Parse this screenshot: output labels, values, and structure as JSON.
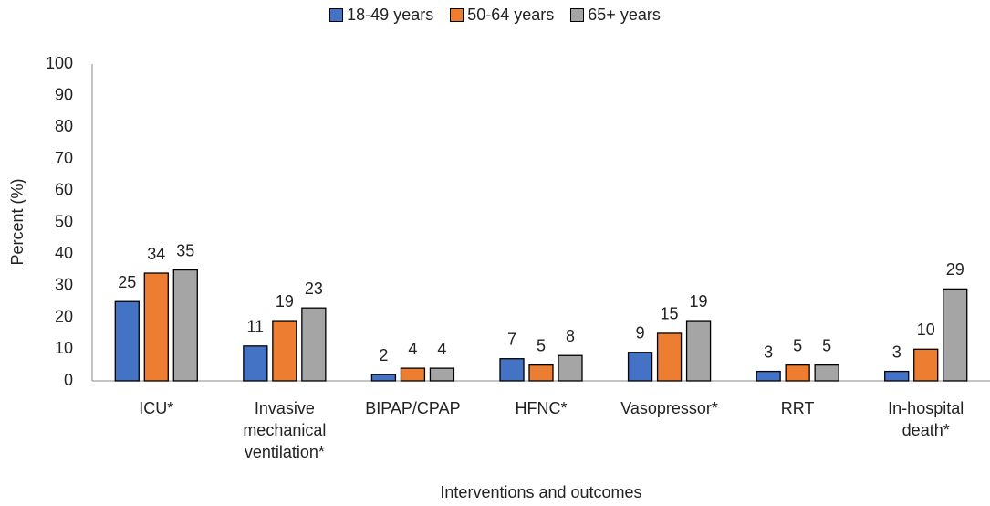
{
  "chart_data": {
    "type": "bar",
    "categories": [
      "ICU*",
      "Invasive mechanical ventilation*",
      "BIPAP/CPAP",
      "HFNC*",
      "Vasopressor*",
      "RRT",
      "In-hospital death*"
    ],
    "series": [
      {
        "name": "18-49 years",
        "color": "#4472c4",
        "values": [
          25,
          11,
          2,
          7,
          9,
          3,
          3
        ]
      },
      {
        "name": "50-64 years",
        "color": "#ed7d31",
        "values": [
          34,
          19,
          4,
          5,
          15,
          5,
          10
        ]
      },
      {
        "name": "65+ years",
        "color": "#a5a5a5",
        "values": [
          35,
          23,
          4,
          8,
          19,
          5,
          29
        ]
      }
    ],
    "ylabel": "Percent (%)",
    "xlabel": "Interventions and outcomes",
    "ylim": [
      0,
      100
    ],
    "yticks": [
      0,
      10,
      20,
      30,
      40,
      50,
      60,
      70,
      80,
      90,
      100
    ],
    "legend": "top",
    "grid": false
  }
}
